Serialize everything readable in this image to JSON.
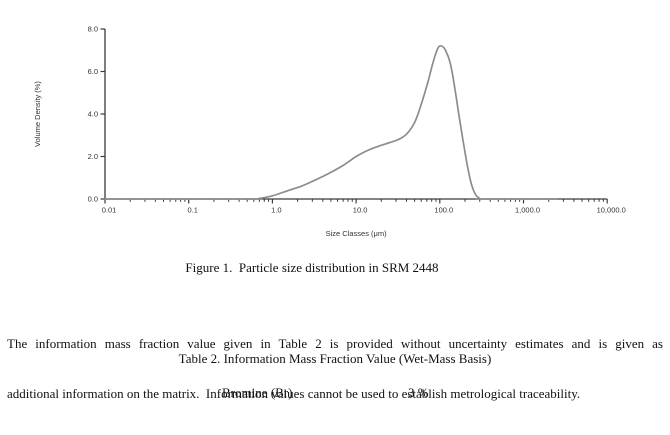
{
  "document": {
    "figure_caption": "Figure 1.  Particle size distribution in SRM 2448",
    "paragraph": {
      "line1": "The information mass fraction value given in Table 2 is provided without uncertainty estimates and is given as",
      "line2": "additional information on the matrix.  Information values cannot be used to establish metrological traceability."
    },
    "table": {
      "caption": "Table 2. Information Mass Fraction Value (Wet-Mass Basis)",
      "rows": [
        {
          "analyte": "Bromine (Br)",
          "value": "3 %"
        }
      ]
    }
  },
  "chart_data": {
    "type": "line",
    "title": "",
    "xlabel": "Size Classes (μm)",
    "ylabel": "Volume Density (%)",
    "x_scale": "log",
    "xlim": [
      0.01,
      10000
    ],
    "ylim": [
      0,
      8
    ],
    "x_tick_values": [
      0.01,
      0.1,
      1,
      10,
      100,
      1000,
      10000
    ],
    "x_tick_labels": [
      "0.01",
      "0.1",
      "1.0",
      "10.0",
      "100.0",
      "1,000.0",
      "10,000.0"
    ],
    "y_tick_values": [
      0,
      2,
      4,
      6,
      8
    ],
    "y_tick_labels": [
      "0.0",
      "2.0",
      "4.0",
      "6.0",
      "8.0"
    ],
    "grid": false,
    "legend": false,
    "line_color": "#8c8c8c",
    "axis_color": "#3a3a3a",
    "series": [
      {
        "name": "Volume density",
        "points": [
          [
            0.01,
            0
          ],
          [
            0.5,
            0
          ],
          [
            0.7,
            0.03
          ],
          [
            1.0,
            0.15
          ],
          [
            1.5,
            0.38
          ],
          [
            2.2,
            0.6
          ],
          [
            3.2,
            0.88
          ],
          [
            4.7,
            1.2
          ],
          [
            7,
            1.58
          ],
          [
            10,
            2.0
          ],
          [
            14,
            2.3
          ],
          [
            19,
            2.5
          ],
          [
            25,
            2.65
          ],
          [
            32,
            2.8
          ],
          [
            40,
            3.05
          ],
          [
            50,
            3.6
          ],
          [
            60,
            4.45
          ],
          [
            72,
            5.5
          ],
          [
            84,
            6.5
          ],
          [
            95,
            7.1
          ],
          [
            105,
            7.2
          ],
          [
            117,
            7.0
          ],
          [
            133,
            6.4
          ],
          [
            150,
            5.3
          ],
          [
            170,
            3.9
          ],
          [
            195,
            2.45
          ],
          [
            220,
            1.3
          ],
          [
            245,
            0.55
          ],
          [
            270,
            0.18
          ],
          [
            300,
            0.03
          ],
          [
            330,
            0
          ],
          [
            2500,
            0
          ]
        ]
      }
    ]
  }
}
